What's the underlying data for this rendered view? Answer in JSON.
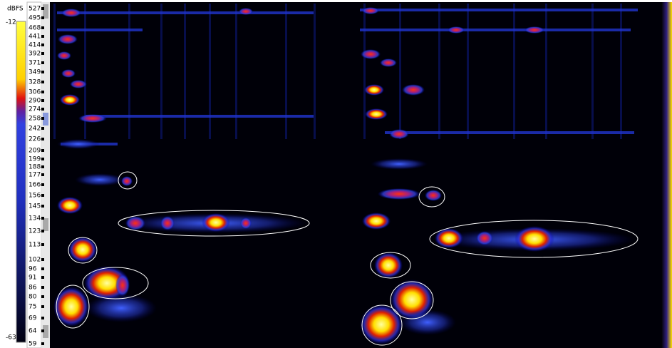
{
  "colorbar": {
    "unit": "dBFS",
    "max_label": "-12",
    "min_label": "-63"
  },
  "frequency_labels": [
    "527",
    "495",
    "468",
    "441",
    "414",
    "392",
    "371",
    "349",
    "328",
    "306",
    "290",
    "274",
    "258",
    "242",
    "226",
    "209",
    "199",
    "188",
    "177",
    "166",
    "156",
    "145",
    "134",
    "123",
    "113",
    "102",
    "96",
    "91",
    "86",
    "80",
    "75",
    "69",
    "64",
    "59"
  ]
}
